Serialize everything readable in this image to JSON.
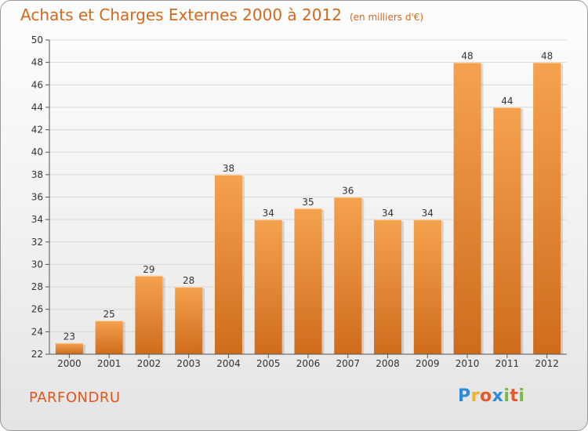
{
  "chart_data": {
    "type": "bar",
    "title": "Achats et Charges Externes 2000 à 2012",
    "subtitle": "(en milliers d'€)",
    "categories": [
      "2000",
      "2001",
      "2002",
      "2003",
      "2004",
      "2005",
      "2006",
      "2007",
      "2008",
      "2009",
      "2010",
      "2011",
      "2012"
    ],
    "values": [
      23,
      25,
      29,
      28,
      38,
      34,
      35,
      36,
      34,
      34,
      48,
      44,
      48
    ],
    "ylim": [
      22,
      50
    ],
    "yticks": [
      22,
      24,
      26,
      28,
      30,
      32,
      34,
      36,
      38,
      40,
      42,
      44,
      46,
      48,
      50
    ],
    "grid": true,
    "bar_color_top": "#f5a24f",
    "bar_color_bottom": "#cf6c1c"
  },
  "commune": "PARFONDRU",
  "logo": {
    "letters": [
      "P",
      "r",
      "o",
      "x",
      "i",
      "t",
      "i"
    ],
    "colors": [
      "#2e8bd6",
      "#f2b21b",
      "#e8572a",
      "#2e8bd6",
      "#7ab648",
      "#e8572a",
      "#7ab648"
    ]
  }
}
